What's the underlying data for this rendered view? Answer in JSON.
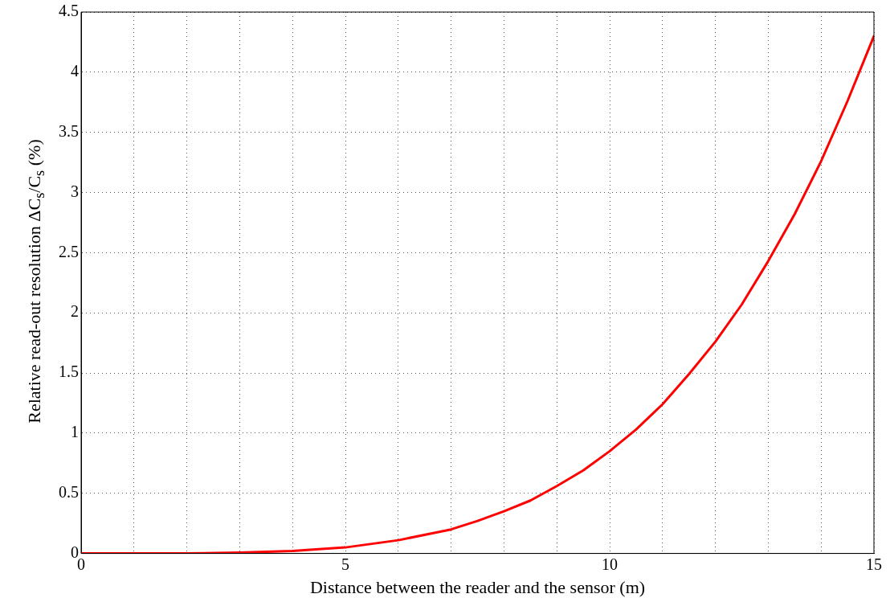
{
  "chart_data": {
    "type": "line",
    "xlabel": "Distance between the reader and the sensor (m)",
    "ylabel": "Relative read-out resolution ΔC$_{s}$/C$_{s}$ (%)",
    "series": [
      {
        "color": "#ff0000",
        "x": [
          0,
          1,
          2,
          3,
          4,
          5,
          6,
          7,
          7.5,
          8,
          8.5,
          9,
          9.5,
          10,
          10.5,
          11,
          11.5,
          12,
          12.5,
          13,
          13.5,
          14,
          14.5,
          15
        ],
        "values": [
          0,
          0,
          0.001,
          0.007,
          0.02,
          0.05,
          0.11,
          0.2,
          0.27,
          0.35,
          0.44,
          0.56,
          0.69,
          0.85,
          1.03,
          1.24,
          1.49,
          1.76,
          2.07,
          2.43,
          2.82,
          3.26,
          3.76,
          4.3
        ]
      }
    ],
    "xlim": [
      0,
      15
    ],
    "ylim": [
      0,
      4.5
    ],
    "xticks": [
      0,
      {
        "value": 1,
        "label": null
      },
      {
        "value": 2,
        "label": null
      },
      {
        "value": 3,
        "label": null
      },
      {
        "value": 4,
        "label": null
      },
      5,
      {
        "value": 6,
        "label": null
      },
      {
        "value": 7,
        "label": null
      },
      {
        "value": 8,
        "label": null
      },
      {
        "value": 9,
        "label": null
      },
      10,
      {
        "value": 11,
        "label": null
      },
      {
        "value": 12,
        "label": null
      },
      {
        "value": 13,
        "label": null
      },
      {
        "value": 14,
        "label": null
      },
      15
    ],
    "yticks": [
      0,
      0.5,
      1,
      1.5,
      2,
      2.5,
      3,
      3.5,
      4,
      4.5
    ],
    "grid": true,
    "legend": false,
    "marker": "none",
    "line_style": "solid"
  }
}
